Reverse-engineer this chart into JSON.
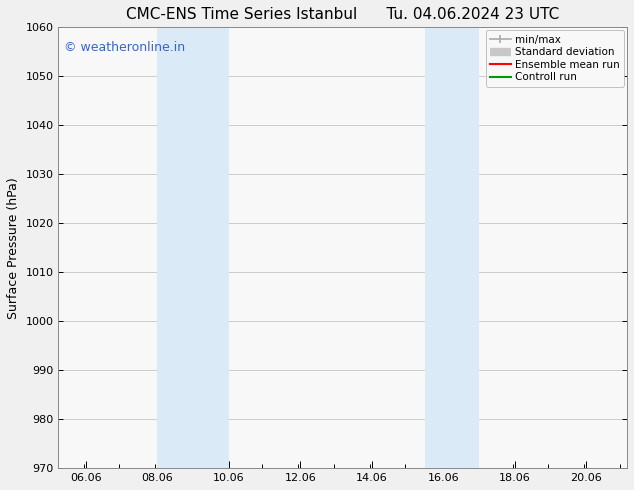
{
  "title": "CMC-ENS Time Series Istanbul",
  "title2": "Tu. 04.06.2024 23 UTC",
  "ylabel": "Surface Pressure (hPa)",
  "ylim": [
    970,
    1060
  ],
  "yticks": [
    970,
    980,
    990,
    1000,
    1010,
    1020,
    1030,
    1040,
    1050,
    1060
  ],
  "xlim_min": 5.3,
  "xlim_max": 21.2,
  "xticks": [
    6.06,
    8.06,
    10.06,
    12.06,
    14.06,
    16.06,
    18.06,
    20.06
  ],
  "xticklabels": [
    "06.06",
    "08.06",
    "10.06",
    "12.06",
    "14.06",
    "16.06",
    "18.06",
    "20.06"
  ],
  "shaded_bands": [
    {
      "xmin": 8.06,
      "xmax": 10.06,
      "color": "#daeaf7"
    },
    {
      "xmin": 15.56,
      "xmax": 17.06,
      "color": "#daeaf7"
    }
  ],
  "watermark": "© weatheronline.in",
  "watermark_color": "#3366cc",
  "background_color": "#f0f0f0",
  "plot_bg_color": "#f8f8f8",
  "legend_labels": [
    "min/max",
    "Standard deviation",
    "Ensemble mean run",
    "Controll run"
  ],
  "legend_colors": [
    "#aaaaaa",
    "#cccccc",
    "#ff0000",
    "#009900"
  ],
  "grid_color": "#bbbbbb",
  "title_fontsize": 11,
  "axis_label_fontsize": 9,
  "tick_fontsize": 8,
  "watermark_fontsize": 9,
  "legend_fontsize": 7.5
}
